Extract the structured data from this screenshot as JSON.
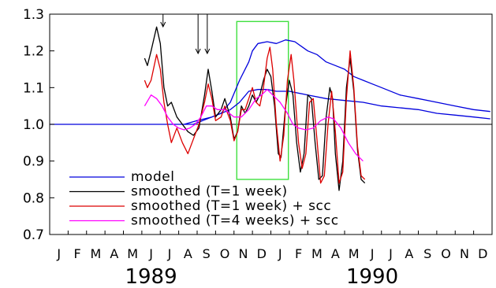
{
  "chart_data": {
    "type": "line",
    "title": "",
    "xlabel": "",
    "ylabel": "",
    "ylim": [
      0.7,
      1.3
    ],
    "y_ticks": [
      "0.7",
      "0.8",
      "0.9",
      "1.0",
      "1.1",
      "1.2",
      "1.3"
    ],
    "month_labels": [
      "J",
      "F",
      "M",
      "A",
      "M",
      "J",
      "J",
      "A",
      "S",
      "O",
      "N",
      "D",
      "J",
      "F",
      "M",
      "A",
      "M",
      "J",
      "J",
      "A",
      "S",
      "O",
      "N",
      "D"
    ],
    "year_labels": [
      {
        "label": "1989",
        "month_index": 5.5
      },
      {
        "label": "1990",
        "month_index": 17.5
      }
    ],
    "x_unit": "months since Jan 1989",
    "reference_line": {
      "y": 1.0
    },
    "arrows": [
      6.15,
      8.05,
      8.55
    ],
    "highlight_box": {
      "x": [
        10.15,
        12.95
      ],
      "y": [
        0.85,
        1.28
      ],
      "color": "#40e040"
    },
    "legend": {
      "position": "bottom-left"
    },
    "series": [
      {
        "name": "model",
        "color": "#0000dd",
        "points": [
          [
            0,
            1.0
          ],
          [
            7.3,
            1.0
          ],
          [
            8.0,
            1.01
          ],
          [
            8.8,
            1.02
          ],
          [
            9.3,
            1.03
          ],
          [
            9.8,
            1.04
          ],
          [
            10.3,
            1.06
          ],
          [
            10.8,
            1.09
          ],
          [
            11.3,
            1.095
          ],
          [
            11.8,
            1.095
          ],
          [
            12.3,
            1.09
          ],
          [
            13.0,
            1.09
          ],
          [
            14.0,
            1.08
          ],
          [
            15.0,
            1.07
          ],
          [
            16.0,
            1.065
          ],
          [
            17.0,
            1.06
          ],
          [
            18.0,
            1.05
          ],
          [
            19.0,
            1.045
          ],
          [
            20.0,
            1.04
          ],
          [
            21.0,
            1.03
          ],
          [
            22.0,
            1.025
          ],
          [
            23.0,
            1.02
          ],
          [
            23.9,
            1.015
          ]
        ]
      },
      {
        "name": "model",
        "color": "#0000dd",
        "points": [
          [
            7.3,
            1.0
          ],
          [
            7.8,
            1.0
          ],
          [
            8.3,
            1.01
          ],
          [
            8.8,
            1.02
          ],
          [
            9.3,
            1.03
          ],
          [
            9.8,
            1.06
          ],
          [
            10.3,
            1.12
          ],
          [
            10.8,
            1.17
          ],
          [
            11.0,
            1.2
          ],
          [
            11.3,
            1.22
          ],
          [
            11.8,
            1.225
          ],
          [
            12.3,
            1.22
          ],
          [
            12.8,
            1.23
          ],
          [
            13.3,
            1.225
          ],
          [
            14.0,
            1.2
          ],
          [
            14.5,
            1.19
          ],
          [
            15.0,
            1.17
          ],
          [
            15.5,
            1.16
          ],
          [
            16.0,
            1.15
          ],
          [
            16.5,
            1.13
          ],
          [
            17.0,
            1.12
          ],
          [
            17.5,
            1.11
          ],
          [
            18.0,
            1.1
          ],
          [
            19.0,
            1.08
          ],
          [
            20.0,
            1.07
          ],
          [
            21.0,
            1.06
          ],
          [
            22.0,
            1.05
          ],
          [
            23.0,
            1.04
          ],
          [
            23.9,
            1.035
          ]
        ]
      },
      {
        "name": "smoothed (T=1 week)",
        "color": "#000000",
        "points": [
          [
            5.15,
            1.18
          ],
          [
            5.3,
            1.16
          ],
          [
            5.5,
            1.2
          ],
          [
            5.8,
            1.265
          ],
          [
            6.0,
            1.22
          ],
          [
            6.2,
            1.1
          ],
          [
            6.4,
            1.05
          ],
          [
            6.6,
            1.06
          ],
          [
            6.9,
            1.02
          ],
          [
            7.2,
            1.0
          ],
          [
            7.5,
            0.98
          ],
          [
            7.8,
            0.97
          ],
          [
            8.1,
            0.99
          ],
          [
            8.4,
            1.08
          ],
          [
            8.6,
            1.15
          ],
          [
            8.8,
            1.09
          ],
          [
            9.0,
            1.02
          ],
          [
            9.3,
            1.04
          ],
          [
            9.5,
            1.07
          ],
          [
            9.8,
            1.02
          ],
          [
            10.0,
            0.96
          ],
          [
            10.2,
            0.98
          ],
          [
            10.4,
            1.05
          ],
          [
            10.6,
            1.03
          ],
          [
            10.8,
            1.05
          ],
          [
            11.0,
            1.08
          ],
          [
            11.2,
            1.06
          ],
          [
            11.4,
            1.08
          ],
          [
            11.6,
            1.12
          ],
          [
            11.8,
            1.15
          ],
          [
            12.0,
            1.13
          ],
          [
            12.2,
            1.05
          ],
          [
            12.4,
            0.92
          ],
          [
            12.55,
            0.91
          ],
          [
            12.8,
            1.05
          ],
          [
            13.0,
            1.12
          ],
          [
            13.2,
            1.08
          ],
          [
            13.4,
            0.95
          ],
          [
            13.6,
            0.87
          ],
          [
            13.8,
            0.92
          ],
          [
            14.0,
            1.08
          ],
          [
            14.2,
            1.07
          ],
          [
            14.4,
            0.95
          ],
          [
            14.6,
            0.85
          ],
          [
            14.8,
            0.86
          ],
          [
            15.0,
            1.02
          ],
          [
            15.2,
            1.1
          ],
          [
            15.35,
            1.07
          ],
          [
            15.5,
            0.92
          ],
          [
            15.7,
            0.82
          ],
          [
            15.9,
            0.9
          ],
          [
            16.1,
            1.1
          ],
          [
            16.3,
            1.18
          ],
          [
            16.5,
            1.09
          ],
          [
            16.7,
            0.93
          ],
          [
            16.9,
            0.85
          ],
          [
            17.1,
            0.84
          ]
        ]
      },
      {
        "name": "smoothed (T=1 week) + scc",
        "color": "#dd0000",
        "points": [
          [
            5.15,
            1.12
          ],
          [
            5.3,
            1.1
          ],
          [
            5.5,
            1.12
          ],
          [
            5.8,
            1.19
          ],
          [
            6.0,
            1.15
          ],
          [
            6.2,
            1.06
          ],
          [
            6.4,
            1.0
          ],
          [
            6.6,
            0.95
          ],
          [
            6.9,
            0.99
          ],
          [
            7.2,
            0.95
          ],
          [
            7.5,
            0.92
          ],
          [
            7.8,
            0.96
          ],
          [
            8.1,
            1.0
          ],
          [
            8.4,
            1.06
          ],
          [
            8.6,
            1.11
          ],
          [
            8.8,
            1.07
          ],
          [
            9.0,
            1.01
          ],
          [
            9.3,
            1.02
          ],
          [
            9.5,
            1.05
          ],
          [
            9.8,
            1.01
          ],
          [
            10.0,
            0.955
          ],
          [
            10.2,
            0.98
          ],
          [
            10.4,
            1.04
          ],
          [
            10.6,
            1.04
          ],
          [
            10.8,
            1.07
          ],
          [
            11.0,
            1.1
          ],
          [
            11.2,
            1.06
          ],
          [
            11.4,
            1.05
          ],
          [
            11.6,
            1.1
          ],
          [
            11.8,
            1.18
          ],
          [
            11.95,
            1.21
          ],
          [
            12.1,
            1.15
          ],
          [
            12.3,
            1.0
          ],
          [
            12.5,
            0.9
          ],
          [
            12.7,
            0.97
          ],
          [
            12.9,
            1.12
          ],
          [
            13.1,
            1.19
          ],
          [
            13.25,
            1.12
          ],
          [
            13.5,
            0.95
          ],
          [
            13.7,
            0.88
          ],
          [
            13.9,
            0.92
          ],
          [
            14.1,
            1.06
          ],
          [
            14.3,
            1.07
          ],
          [
            14.5,
            0.96
          ],
          [
            14.7,
            0.84
          ],
          [
            14.9,
            0.86
          ],
          [
            15.1,
            1.0
          ],
          [
            15.3,
            1.09
          ],
          [
            15.5,
            0.98
          ],
          [
            15.7,
            0.84
          ],
          [
            15.9,
            0.87
          ],
          [
            16.1,
            1.07
          ],
          [
            16.3,
            1.2
          ],
          [
            16.5,
            1.1
          ],
          [
            16.7,
            0.94
          ],
          [
            16.9,
            0.86
          ],
          [
            17.1,
            0.85
          ]
        ]
      },
      {
        "name": "smoothed (T=4 weeks) + scc",
        "color": "#ff00ff",
        "points": [
          [
            5.15,
            1.05
          ],
          [
            5.5,
            1.08
          ],
          [
            5.8,
            1.07
          ],
          [
            6.1,
            1.05
          ],
          [
            6.4,
            1.02
          ],
          [
            6.7,
            1.0
          ],
          [
            7.0,
            0.99
          ],
          [
            7.3,
            0.985
          ],
          [
            7.6,
            0.99
          ],
          [
            7.9,
            1.0
          ],
          [
            8.2,
            1.02
          ],
          [
            8.5,
            1.05
          ],
          [
            8.8,
            1.05
          ],
          [
            9.1,
            1.04
          ],
          [
            9.5,
            1.04
          ],
          [
            10.0,
            1.02
          ],
          [
            10.4,
            1.02
          ],
          [
            10.8,
            1.04
          ],
          [
            11.2,
            1.07
          ],
          [
            11.5,
            1.08
          ],
          [
            11.8,
            1.095
          ],
          [
            12.1,
            1.08
          ],
          [
            12.5,
            1.06
          ],
          [
            12.9,
            1.03
          ],
          [
            13.2,
            1.0
          ],
          [
            13.5,
            0.99
          ],
          [
            13.9,
            0.985
          ],
          [
            14.3,
            0.99
          ],
          [
            14.7,
            1.01
          ],
          [
            15.1,
            1.02
          ],
          [
            15.4,
            1.015
          ],
          [
            15.8,
            0.99
          ],
          [
            16.2,
            0.95
          ],
          [
            16.6,
            0.92
          ],
          [
            17.0,
            0.9
          ]
        ]
      }
    ],
    "legend_entries": [
      {
        "label": "model",
        "color": "#0000dd"
      },
      {
        "label": "smoothed (T=1 week)",
        "color": "#000000"
      },
      {
        "label": "smoothed (T=1 week) + scc",
        "color": "#dd0000"
      },
      {
        "label": "smoothed (T=4 weeks) + scc",
        "color": "#ff00ff"
      }
    ]
  }
}
